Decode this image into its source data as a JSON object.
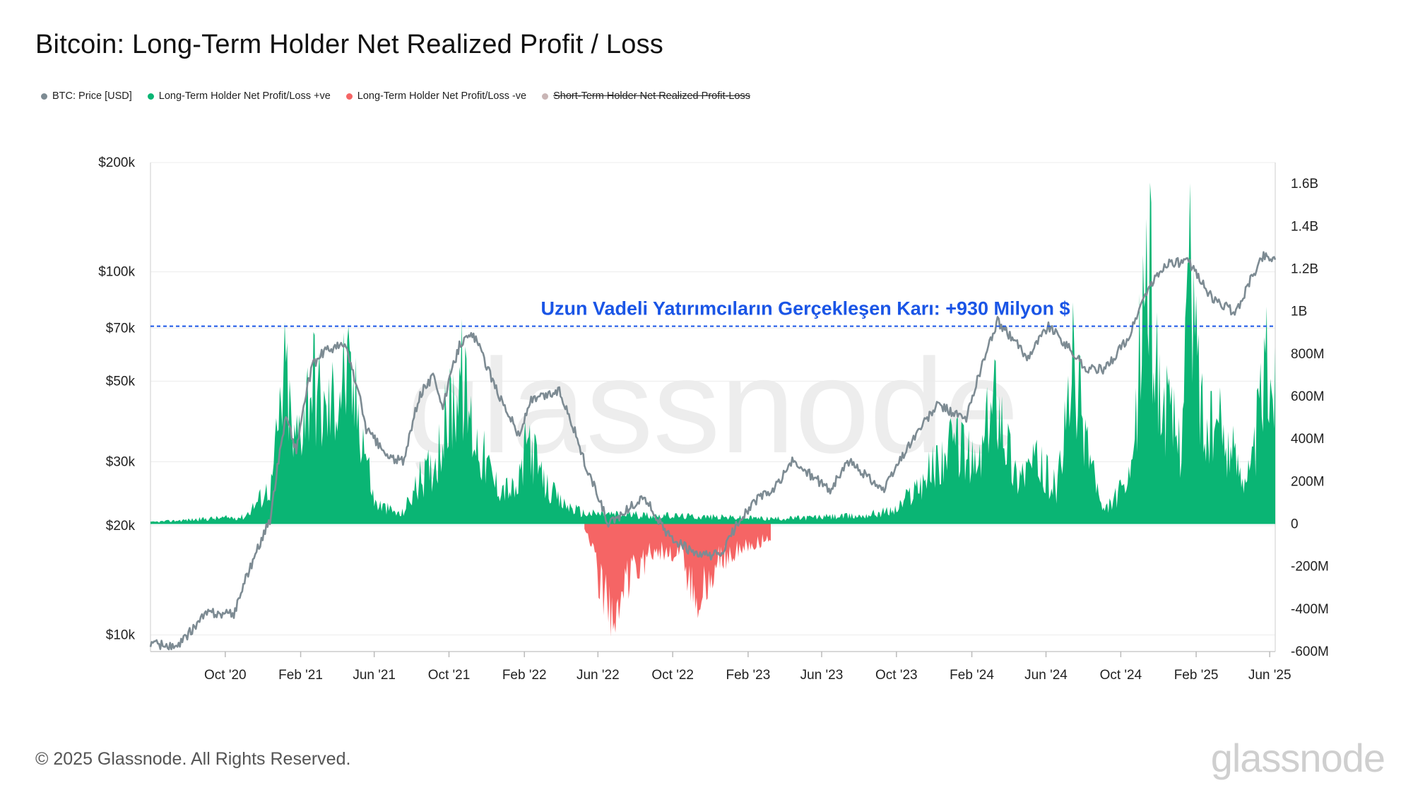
{
  "title": "Bitcoin: Long-Term Holder Net Realized Profit / Loss",
  "legend": [
    {
      "label": "BTC: Price [USD]",
      "color": "#7d8b93",
      "disabled": false
    },
    {
      "label": "Long-Term Holder Net Profit/Loss +ve",
      "color": "#0ab574",
      "disabled": false
    },
    {
      "label": "Long-Term Holder Net Profit/Loss -ve",
      "color": "#f56565",
      "disabled": false
    },
    {
      "label": "Short-Term Holder Net Realized Profit-Loss",
      "color": "#c9b5b5",
      "disabled": true
    }
  ],
  "footer": "© 2025 Glassnode. All Rights Reserved.",
  "brand": "glassnode",
  "watermark": "glassnode",
  "chart_data": {
    "type": "area",
    "title": "Bitcoin: Long-Term Holder Net Realized Profit / Loss",
    "x_ticks": [
      "Oct '20",
      "Feb '21",
      "Jun '21",
      "Oct '21",
      "Feb '22",
      "Jun '22",
      "Oct '22",
      "Feb '23",
      "Jun '23",
      "Oct '23",
      "Feb '24",
      "Jun '24",
      "Oct '24",
      "Feb '25",
      "Jun '25"
    ],
    "x_range": [
      "2020-06-01",
      "2025-06-10"
    ],
    "y_left": {
      "scale": "log",
      "ticks": [
        10000,
        20000,
        30000,
        50000,
        70000,
        100000,
        200000
      ],
      "tick_labels": [
        "$10k",
        "$20k",
        "$30k",
        "$50k",
        "$70k",
        "$100k",
        "$200k"
      ],
      "range": [
        9000,
        200000
      ]
    },
    "y_right": {
      "ticks": [
        -600000000,
        -400000000,
        -200000000,
        0,
        200000000,
        400000000,
        600000000,
        800000000,
        1000000000,
        1200000000,
        1400000000,
        1600000000
      ],
      "tick_labels": [
        "-600M",
        "-400M",
        "-200M",
        "0",
        "200M",
        "400M",
        "600M",
        "800M",
        "1B",
        "1.2B",
        "1.4B",
        "1.6B"
      ],
      "range": [
        -600000000,
        1700000000
      ]
    },
    "grid": true,
    "annotation": {
      "text": "Uzun Vadeli Yatırımcıların Gerçekleşen Karı: +930 Milyon $",
      "value": 930000000,
      "color": "#1a55e6"
    },
    "series": [
      {
        "name": "BTC: Price [USD]",
        "axis": "left",
        "color": "#7d8b93",
        "x": [
          "2020-06-01",
          "2020-07-15",
          "2020-09-01",
          "2020-10-15",
          "2020-11-15",
          "2020-12-15",
          "2021-01-08",
          "2021-01-25",
          "2021-02-20",
          "2021-03-13",
          "2021-04-14",
          "2021-05-19",
          "2021-06-22",
          "2021-07-20",
          "2021-08-15",
          "2021-09-07",
          "2021-09-21",
          "2021-10-20",
          "2021-11-10",
          "2021-12-15",
          "2022-01-24",
          "2022-02-10",
          "2022-03-30",
          "2022-05-12",
          "2022-06-18",
          "2022-08-15",
          "2022-09-20",
          "2022-11-09",
          "2022-12-20",
          "2023-01-20",
          "2023-02-20",
          "2023-03-15",
          "2023-04-14",
          "2023-06-15",
          "2023-07-15",
          "2023-09-11",
          "2023-10-25",
          "2023-12-08",
          "2024-01-23",
          "2024-02-28",
          "2024-03-14",
          "2024-05-01",
          "2024-06-05",
          "2024-08-05",
          "2024-09-06",
          "2024-10-15",
          "2024-11-12",
          "2024-12-17",
          "2025-01-20",
          "2025-02-28",
          "2025-04-07",
          "2025-05-22",
          "2025-06-10"
        ],
        "y": [
          9500,
          9200,
          11500,
          11400,
          16000,
          21000,
          40000,
          32000,
          55000,
          61000,
          63000,
          37000,
          31000,
          30000,
          46000,
          52000,
          42000,
          64000,
          67000,
          48000,
          35000,
          44000,
          47000,
          29000,
          20000,
          24000,
          19000,
          16500,
          16700,
          21000,
          24000,
          25000,
          30000,
          25000,
          30000,
          25000,
          34000,
          43000,
          39000,
          62000,
          73000,
          58000,
          71000,
          54000,
          54000,
          66000,
          88000,
          106000,
          106000,
          84000,
          77000,
          111000,
          108000
        ]
      },
      {
        "name": "Long-Term Holder Net Profit/Loss +ve",
        "axis": "right",
        "color": "#0ab574",
        "x": [
          "2020-06-01",
          "2020-09-01",
          "2020-11-01",
          "2020-12-15",
          "2021-01-08",
          "2021-01-20",
          "2021-02-20",
          "2021-03-13",
          "2021-04-14",
          "2021-05-10",
          "2021-06-01",
          "2021-07-15",
          "2021-08-15",
          "2021-09-05",
          "2021-10-20",
          "2021-11-10",
          "2021-12-15",
          "2022-01-20",
          "2022-02-08",
          "2022-03-01",
          "2022-04-01",
          "2022-05-10",
          "2023-03-20",
          "2023-06-01",
          "2023-08-01",
          "2023-10-01",
          "2023-12-01",
          "2024-01-11",
          "2024-02-10",
          "2024-03-13",
          "2024-04-10",
          "2024-05-15",
          "2024-06-20",
          "2024-07-15",
          "2024-09-01",
          "2024-10-20",
          "2024-11-12",
          "2024-12-05",
          "2025-01-06",
          "2025-01-20",
          "2025-02-15",
          "2025-03-10",
          "2025-04-10",
          "2025-05-01",
          "2025-05-25",
          "2025-06-10"
        ],
        "y": [
          10000000,
          30000000,
          40000000,
          220000000,
          880000000,
          420000000,
          850000000,
          600000000,
          860000000,
          600000000,
          120000000,
          50000000,
          250000000,
          330000000,
          850000000,
          520000000,
          230000000,
          180000000,
          500000000,
          250000000,
          120000000,
          60000000,
          30000000,
          40000000,
          45000000,
          80000000,
          330000000,
          470000000,
          300000000,
          800000000,
          280000000,
          350000000,
          200000000,
          880000000,
          60000000,
          260000000,
          1600000000,
          700000000,
          480000000,
          1470000000,
          500000000,
          560000000,
          350000000,
          280000000,
          900000000,
          830000000
        ]
      },
      {
        "name": "Long-Term Holder Net Profit/Loss -ve",
        "axis": "right",
        "color": "#f56565",
        "x": [
          "2022-05-10",
          "2022-05-25",
          "2022-06-18",
          "2022-07-15",
          "2022-09-01",
          "2022-10-15",
          "2022-11-09",
          "2022-12-15",
          "2023-02-01",
          "2023-03-10"
        ],
        "y": [
          -20000000,
          -180000000,
          -520000000,
          -330000000,
          -140000000,
          -160000000,
          -440000000,
          -200000000,
          -120000000,
          -80000000
        ]
      }
    ]
  }
}
